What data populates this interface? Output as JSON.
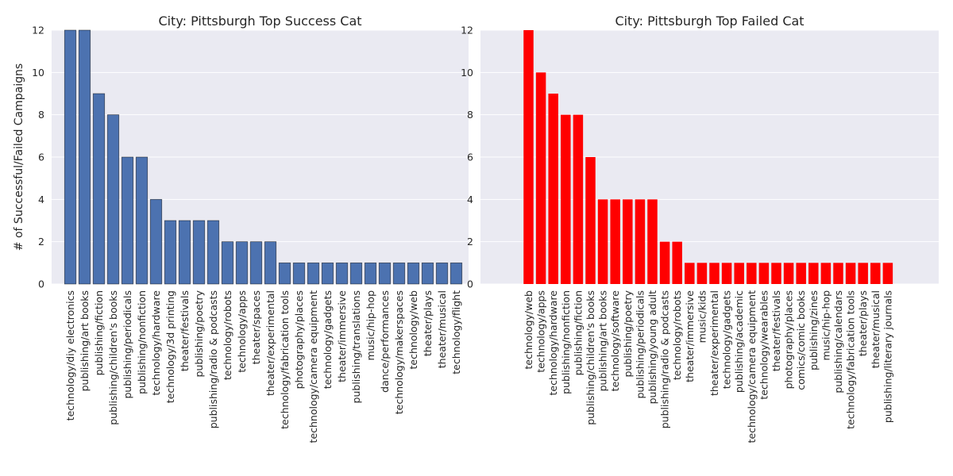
{
  "chart_data": [
    {
      "type": "bar",
      "title": "City: Pittsburgh Top Success Cat",
      "ylabel": "# of Successful/Failed Campaigns",
      "xlabel": "",
      "ylim": [
        0,
        12
      ],
      "yticks": [
        0,
        2,
        4,
        6,
        8,
        10,
        12
      ],
      "grid": true,
      "bar_color": "#4c72b0",
      "categories": [
        "technology/diy electronics",
        "publishing/art books",
        "publishing/fiction",
        "publishing/children's books",
        "publishing/periodicals",
        "publishing/nonfiction",
        "technology/hardware",
        "technology/3d printing",
        "theater/festivals",
        "publishing/poetry",
        "publishing/radio & podcasts",
        "technology/robots",
        "technology/apps",
        "theater/spaces",
        "theater/experimental",
        "technology/fabrication tools",
        "photography/places",
        "technology/camera equipment",
        "technology/gadgets",
        "theater/immersive",
        "publishing/translations",
        "music/hip-hop",
        "dance/performances",
        "technology/makerspaces",
        "technology/web",
        "theater/plays",
        "theater/musical",
        "technology/flight"
      ],
      "values": [
        12,
        12,
        9,
        8,
        6,
        6,
        4,
        3,
        3,
        3,
        3,
        2,
        2,
        2,
        2,
        1,
        1,
        1,
        1,
        1,
        1,
        1,
        1,
        1,
        1,
        1,
        1,
        1
      ]
    },
    {
      "type": "bar",
      "title": "City: Pittsburgh Top Failed Cat",
      "ylabel": "",
      "xlabel": "",
      "ylim": [
        0,
        12
      ],
      "yticks": [
        0,
        2,
        4,
        6,
        8,
        10,
        12
      ],
      "grid": true,
      "bar_color": "#ff0000",
      "categories": [
        "technology/web",
        "technology/apps",
        "technology/hardware",
        "publishing/nonfiction",
        "publishing/fiction",
        "publishing/children's books",
        "publishing/art books",
        "technology/software",
        "publishing/poetry",
        "publishing/periodicals",
        "publishing/young adult",
        "publishing/radio & podcasts",
        "technology/robots",
        "theater/immersive",
        "music/kids",
        "theater/experimental",
        "technology/gadgets",
        "publishing/academic",
        "technology/camera equipment",
        "technology/wearables",
        "theater/festivals",
        "photography/places",
        "comics/comic books",
        "publishing/zines",
        "music/hip-hop",
        "publishing/calendars",
        "technology/fabrication tools",
        "theater/plays",
        "theater/musical",
        "publishing/literary journals"
      ],
      "values": [
        12,
        10,
        9,
        8,
        8,
        6,
        4,
        4,
        4,
        4,
        4,
        2,
        2,
        1,
        1,
        1,
        1,
        1,
        1,
        1,
        1,
        1,
        1,
        1,
        1,
        1,
        1,
        1,
        1,
        1
      ]
    }
  ]
}
